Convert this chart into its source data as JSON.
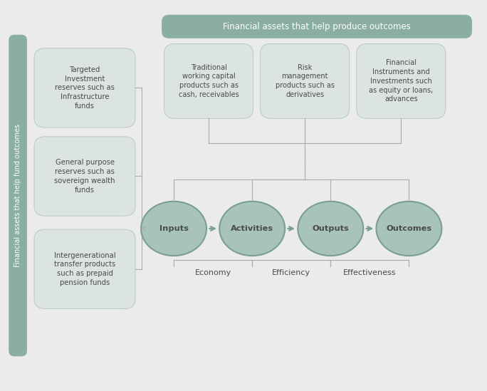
{
  "bg_color": "#ebebeb",
  "teal_color": "#8aada4",
  "box_color": "#dce3e3",
  "box_border": "#b8c8c8",
  "line_color": "#aaaaaa",
  "text_dark": "#4a4a4a",
  "left_bar_color": "#8aada4",
  "top_bar_color": "#8aada4",
  "ellipse_color": "#a8c3bc",
  "ellipse_border": "#7a9e96",
  "white": "#ffffff",
  "top_header": "Financial assets that help produce outcomes",
  "top_boxes": [
    "Traditional\nworking capital\nproducts such as\ncash, receivables",
    "Risk\nmanagement\nproducts such as\nderivatives",
    "Financial\nInstruments and\nInvestments such\nas equity or loans,\nadvances"
  ],
  "left_header": "Financial assets that help fund outcomes",
  "left_boxes": [
    "Targeted\nInvestment\nreserves such as\nInfrastructure\nfunds",
    "General purpose\nreserves such as\nsovereign wealth\nfunds",
    "Intergenerational\ntransfer products\nsuch as prepaid\npension funds"
  ],
  "ellipses": [
    "Inputs",
    "Activities",
    "Outputs",
    "Outcomes"
  ],
  "bottom_labels": [
    "Economy",
    "Efficiency",
    "Effectiveness"
  ],
  "xlim": [
    0,
    10
  ],
  "ylim": [
    0,
    8.5
  ]
}
